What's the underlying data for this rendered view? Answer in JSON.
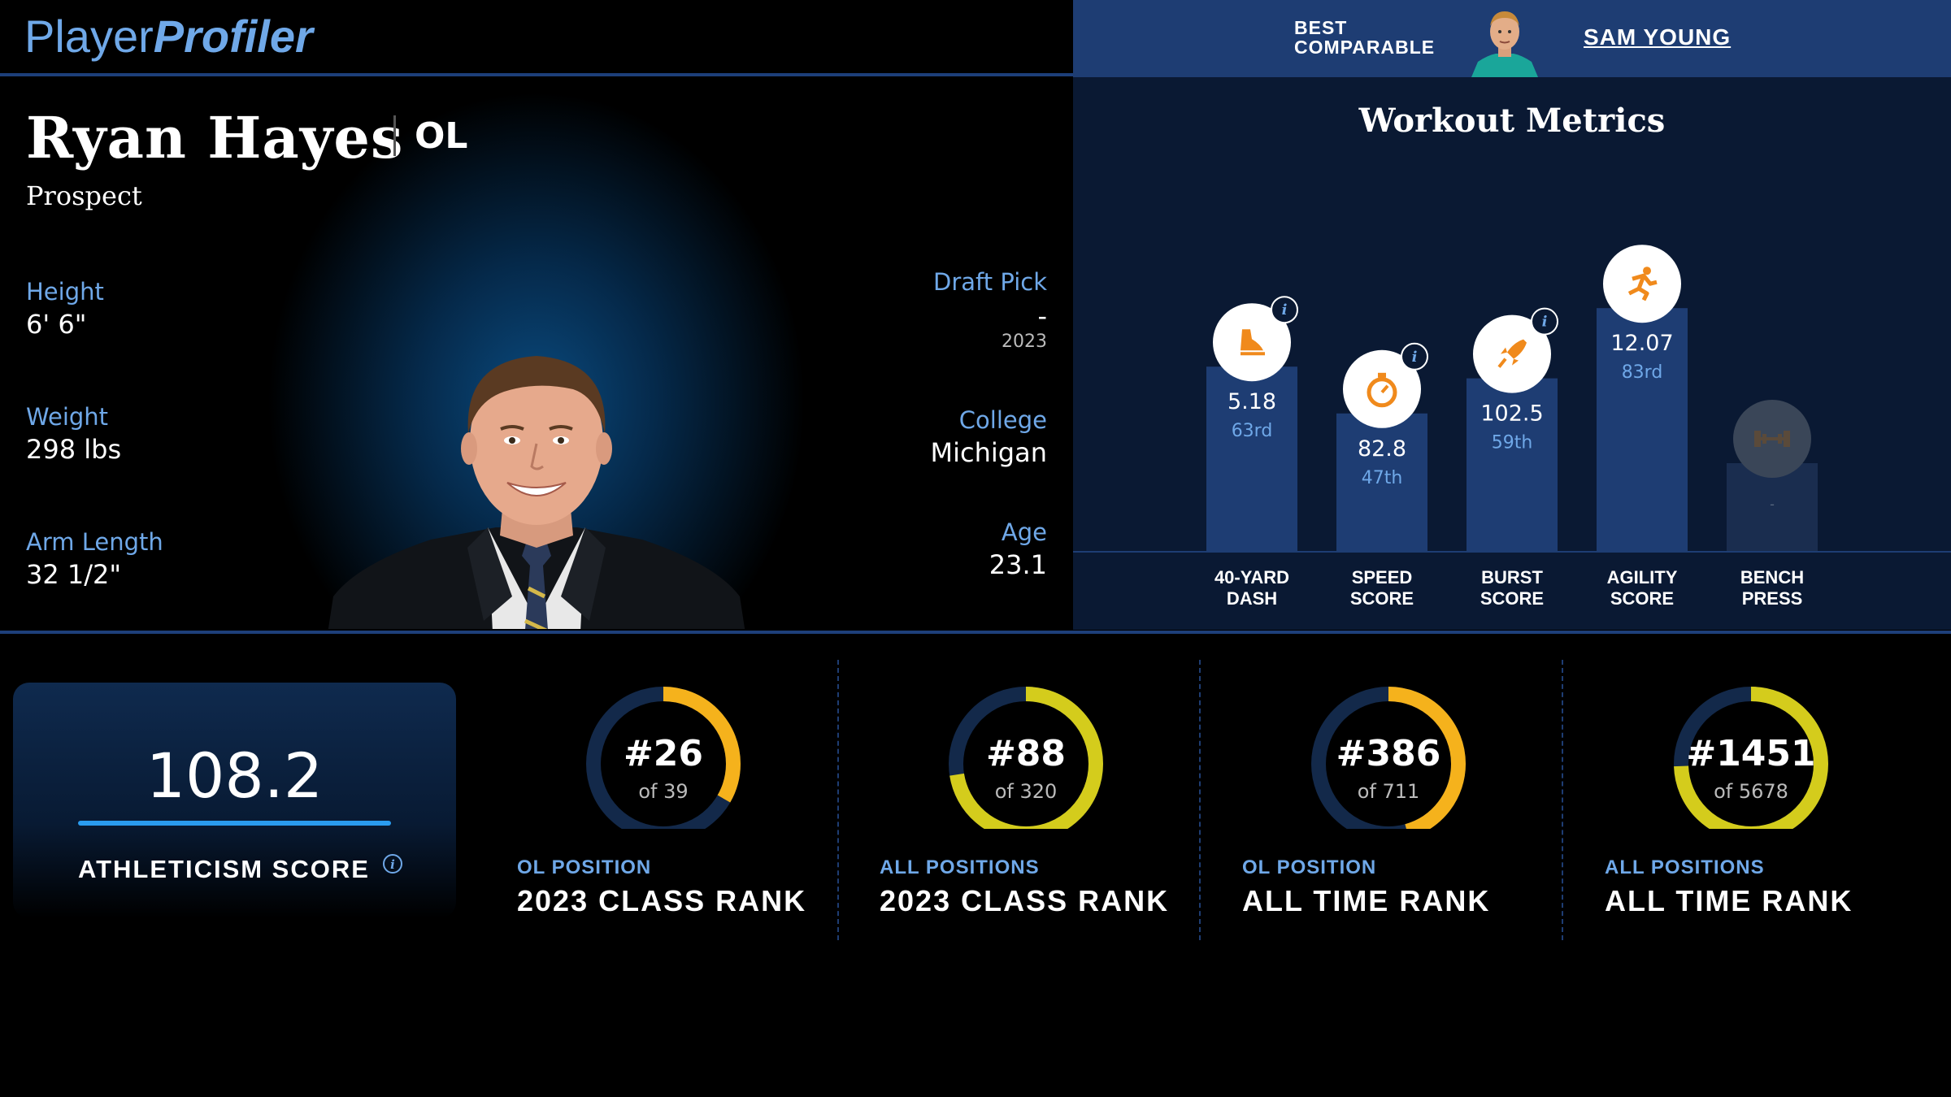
{
  "header": {
    "logo_part1": "Player",
    "logo_part2": "Profiler"
  },
  "best_comparable": {
    "label_line1": "BEST",
    "label_line2": "COMPARABLE",
    "name": "SAM YOUNG"
  },
  "player": {
    "name": "Ryan Hayes",
    "position": "OL",
    "status": "Prospect",
    "height_label": "Height",
    "height": "6' 6\"",
    "weight_label": "Weight",
    "weight": "298 lbs",
    "arm_label": "Arm Length",
    "arm": "32 1/2\"",
    "draft_label": "Draft Pick",
    "draft_pick": "-",
    "draft_year": "2023",
    "college_label": "College",
    "college": "Michigan",
    "age_label": "Age",
    "age": "23.1"
  },
  "workout": {
    "title": "Workout Metrics",
    "metrics": [
      {
        "line1": "40-YARD",
        "line2": "DASH",
        "value": "5.18",
        "pct": "63rd",
        "pct_num": 63,
        "icon": "shoe-icon",
        "info": true
      },
      {
        "line1": "SPEED",
        "line2": "SCORE",
        "value": "82.8",
        "pct": "47th",
        "pct_num": 47,
        "icon": "stopwatch-icon",
        "info": true
      },
      {
        "line1": "BURST",
        "line2": "SCORE",
        "value": "102.5",
        "pct": "59th",
        "pct_num": 59,
        "icon": "rocket-icon",
        "info": true
      },
      {
        "line1": "AGILITY",
        "line2": "SCORE",
        "value": "12.07",
        "pct": "83rd",
        "pct_num": 83,
        "icon": "runner-icon",
        "info": false
      },
      {
        "line1": "BENCH",
        "line2": "PRESS",
        "value": "-",
        "pct": "",
        "pct_num": 30,
        "icon": "dumbbell-icon",
        "info": false
      }
    ],
    "colors": {
      "bar": "#1e3d73",
      "icon_orange": "#f08a1c",
      "value": "#ffffff",
      "pct": "#6fa8e8"
    }
  },
  "athleticism": {
    "value": "108.2",
    "label": "ATHLETICISM SCORE"
  },
  "ranks": [
    {
      "rank": "#26",
      "of": "of 39",
      "rank_num": 26,
      "total": 39,
      "category": "OL POSITION",
      "title": "2023 CLASS RANK",
      "color": "#f5b21c"
    },
    {
      "rank": "#88",
      "of": "of 320",
      "rank_num": 88,
      "total": 320,
      "category": "ALL POSITIONS",
      "title": "2023 CLASS RANK",
      "color": "#d4cc1c"
    },
    {
      "rank": "#386",
      "of": "of 711",
      "rank_num": 386,
      "total": 711,
      "category": "OL POSITION",
      "title": "ALL TIME RANK",
      "color": "#f5b21c"
    },
    {
      "rank": "#1451",
      "of": "of 5678",
      "rank_num": 1451,
      "total": 5678,
      "category": "ALL POSITIONS",
      "title": "ALL TIME RANK",
      "color": "#d4cc1c"
    }
  ]
}
